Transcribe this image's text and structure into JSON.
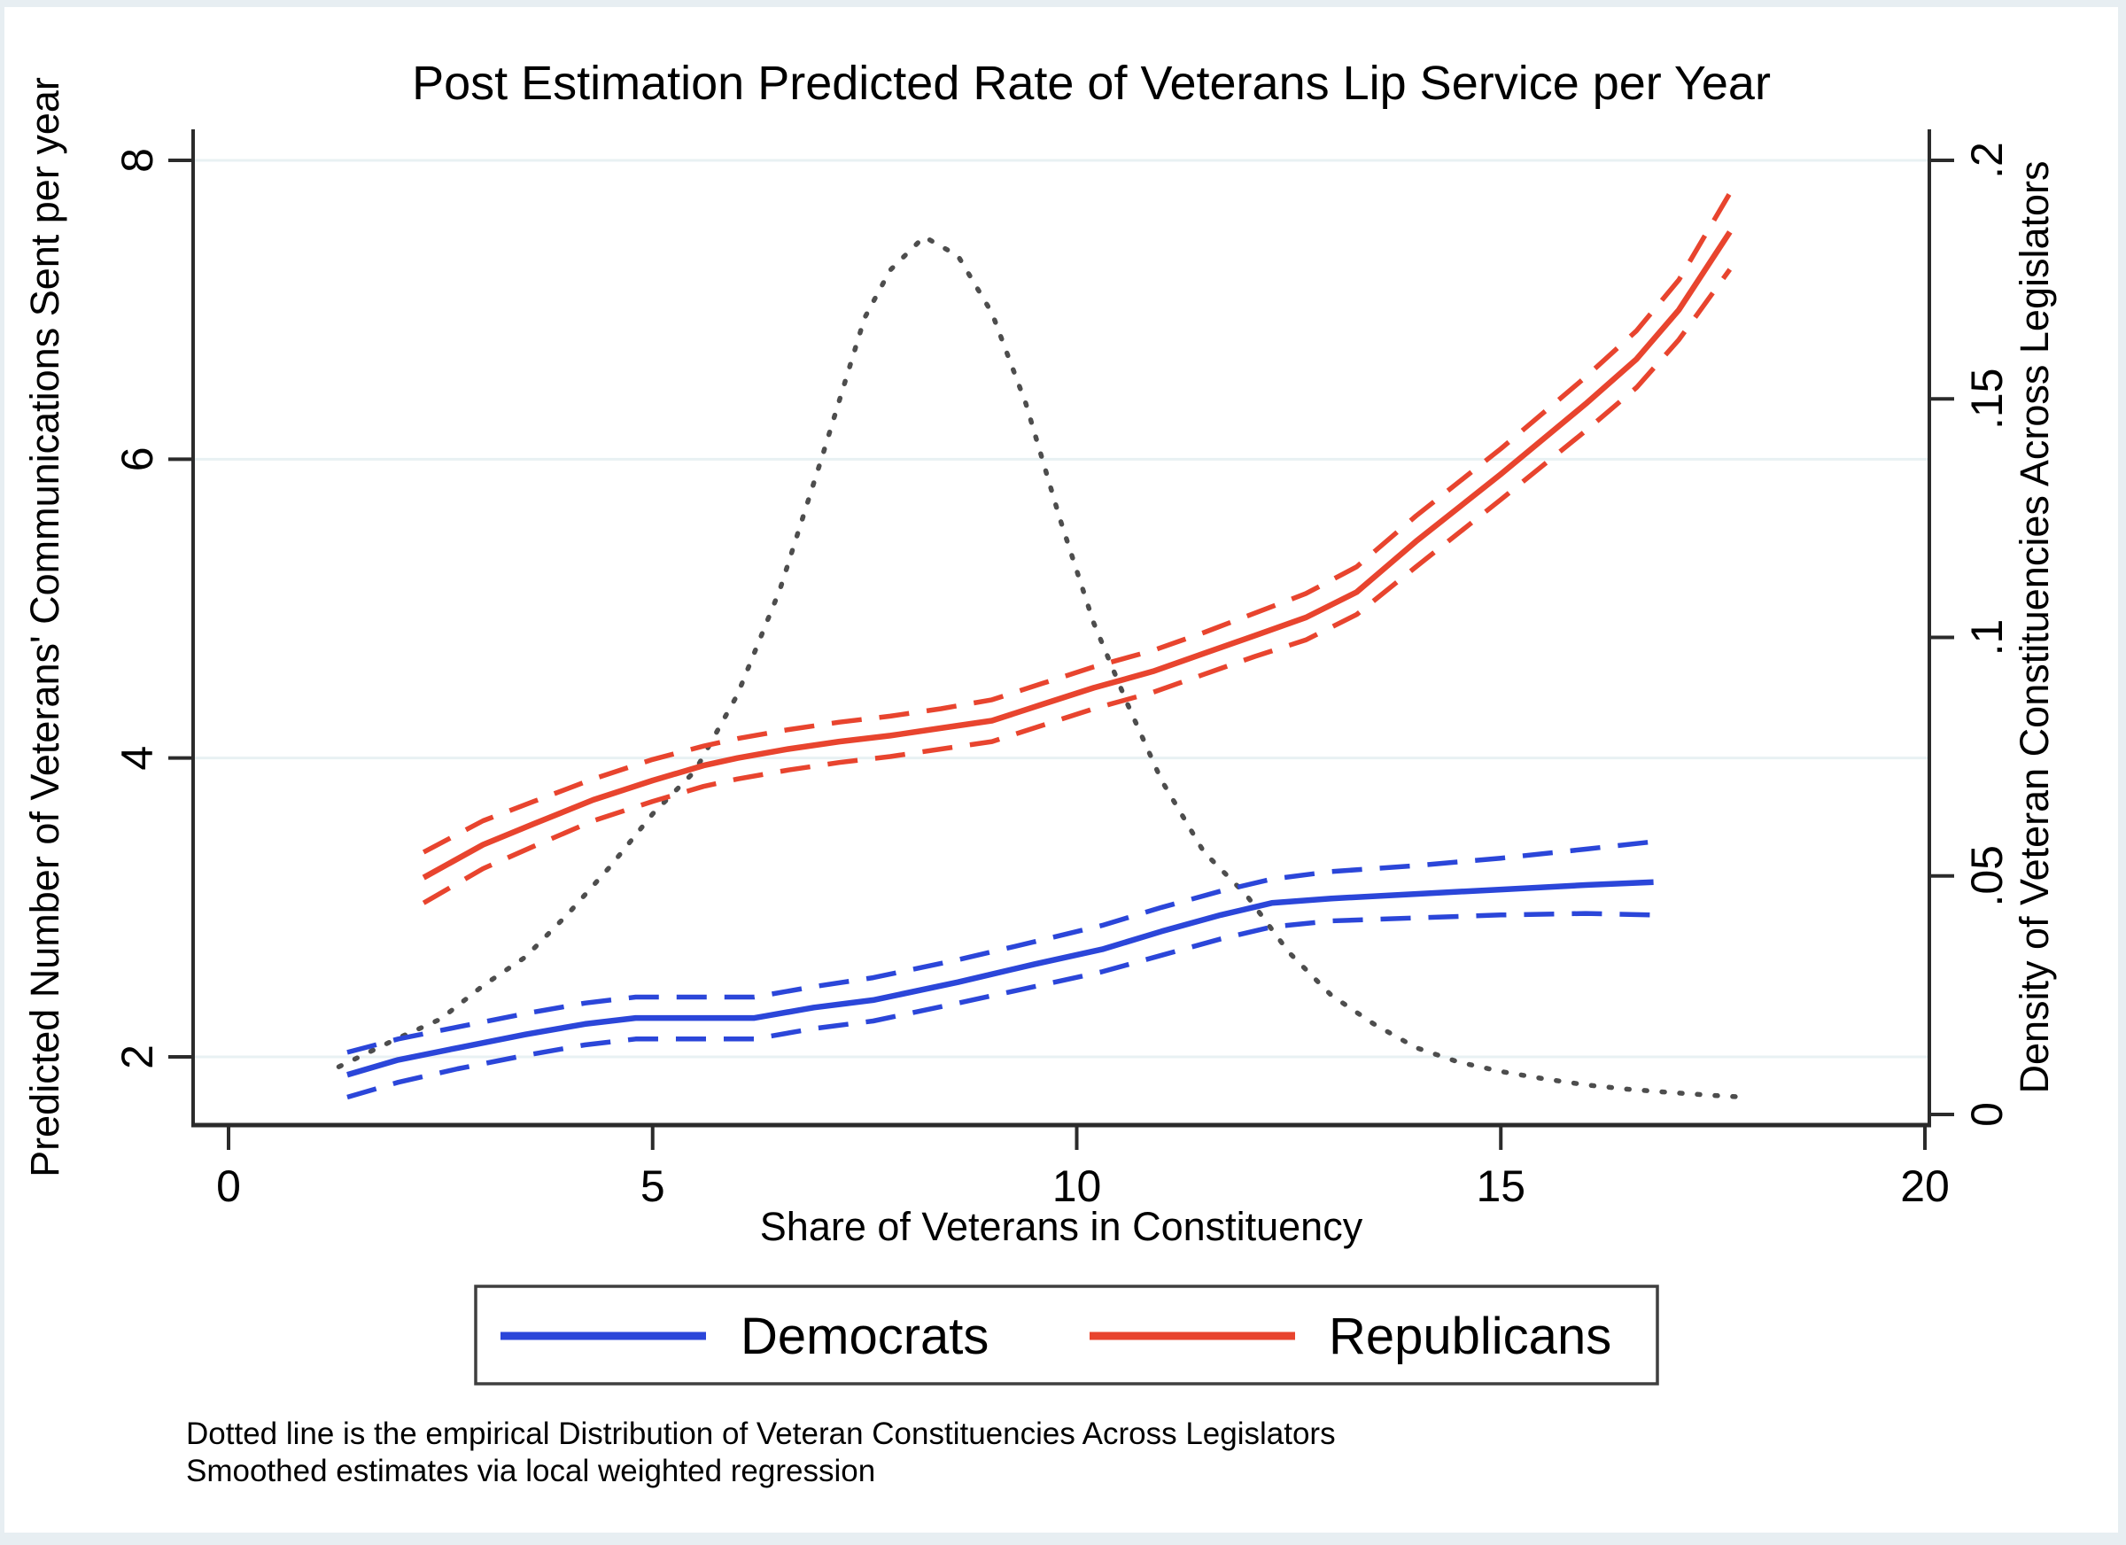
{
  "page": {
    "background": "#ffffff",
    "frame_color": "#e7eef2"
  },
  "chart_data": {
    "type": "line",
    "title": "Post Estimation Predicted Rate of Veterans Lip Service per Year",
    "x_axis": {
      "title": "Share of Veterans in Constituency",
      "tick_labels": [
        "0",
        "5",
        "10",
        "15",
        "20"
      ],
      "tick_values": [
        0,
        5,
        10,
        15,
        20
      ],
      "range": [
        0,
        20
      ]
    },
    "y_left": {
      "title": "Predicted Number of Veterans' Communications Sent per year",
      "tick_labels": [
        "2",
        "4",
        "6",
        "8"
      ],
      "tick_values": [
        2,
        4,
        6,
        8
      ],
      "visible_range": [
        1.55,
        8.45
      ],
      "grid": true
    },
    "y_right": {
      "title": "Density of Veteran Constituencies Across Legislators",
      "tick_labels": [
        "0",
        ".05",
        ".1",
        ".15",
        ".2"
      ],
      "tick_values": [
        0,
        0.05,
        0.1,
        0.15,
        0.2
      ],
      "visible_range": [
        0,
        0.21
      ],
      "grid": false
    },
    "legend": {
      "position": "bottom",
      "entries": [
        {
          "label": "Democrats",
          "color": "#2b46d9"
        },
        {
          "label": "Republicans",
          "color": "#e8442e"
        }
      ]
    },
    "notes": [
      "Dotted line is the empirical Distribution of Veteran Constituencies Across Legislators",
      "Smoothed estimates via local weighted regression"
    ],
    "colors": {
      "democrat": "#2b46d9",
      "republican": "#e8442e",
      "density_dotted": "#4d4d4d",
      "gridline": "#e8f1f3",
      "axis_line": "#2b2b2b"
    },
    "series": [
      {
        "name": "density-distribution",
        "axis": "right",
        "style": "dotted",
        "color": "#4d4d4d",
        "points": [
          [
            1.3,
            0.01
          ],
          [
            2.0,
            0.016
          ],
          [
            2.5,
            0.02
          ],
          [
            3.0,
            0.027
          ],
          [
            3.5,
            0.033
          ],
          [
            4.0,
            0.042
          ],
          [
            4.5,
            0.052
          ],
          [
            5.0,
            0.063
          ],
          [
            5.5,
            0.072
          ],
          [
            6.0,
            0.088
          ],
          [
            6.5,
            0.11
          ],
          [
            7.0,
            0.138
          ],
          [
            7.5,
            0.167
          ],
          [
            7.8,
            0.177
          ],
          [
            8.2,
            0.184
          ],
          [
            8.6,
            0.18
          ],
          [
            9.0,
            0.168
          ],
          [
            9.4,
            0.149
          ],
          [
            9.8,
            0.125
          ],
          [
            10.2,
            0.103
          ],
          [
            10.6,
            0.086
          ],
          [
            11.0,
            0.07
          ],
          [
            11.5,
            0.055
          ],
          [
            12.0,
            0.046
          ],
          [
            12.5,
            0.034
          ],
          [
            13.0,
            0.025
          ],
          [
            13.5,
            0.019
          ],
          [
            14.0,
            0.014
          ],
          [
            14.5,
            0.011
          ],
          [
            15.0,
            0.009
          ],
          [
            15.5,
            0.0075
          ],
          [
            16.0,
            0.0062
          ],
          [
            16.5,
            0.0053
          ],
          [
            17.0,
            0.0046
          ],
          [
            17.5,
            0.004
          ],
          [
            17.8,
            0.0037
          ]
        ]
      },
      {
        "name": "republicans-upper-ci",
        "axis": "left",
        "style": "dashed",
        "color": "#e8442e",
        "points": [
          [
            2.3,
            3.37
          ],
          [
            3.0,
            3.58
          ],
          [
            3.6,
            3.71
          ],
          [
            4.3,
            3.86
          ],
          [
            5.0,
            3.99
          ],
          [
            5.6,
            4.08
          ],
          [
            6.0,
            4.13
          ],
          [
            6.6,
            4.19
          ],
          [
            7.2,
            4.24
          ],
          [
            7.8,
            4.28
          ],
          [
            8.4,
            4.33
          ],
          [
            9.0,
            4.39
          ],
          [
            9.6,
            4.5
          ],
          [
            10.2,
            4.61
          ],
          [
            10.9,
            4.72
          ],
          [
            11.5,
            4.84
          ],
          [
            12.1,
            4.97
          ],
          [
            12.7,
            5.1
          ],
          [
            13.3,
            5.28
          ],
          [
            14.0,
            5.62
          ],
          [
            15.0,
            6.07
          ],
          [
            16.0,
            6.55
          ],
          [
            16.6,
            6.86
          ],
          [
            17.1,
            7.2
          ],
          [
            17.7,
            7.78
          ]
        ]
      },
      {
        "name": "republicans-center",
        "axis": "left",
        "style": "solid",
        "color": "#e8442e",
        "points": [
          [
            2.3,
            3.2
          ],
          [
            3.0,
            3.42
          ],
          [
            3.6,
            3.56
          ],
          [
            4.3,
            3.72
          ],
          [
            5.0,
            3.85
          ],
          [
            5.6,
            3.95
          ],
          [
            6.0,
            4.0
          ],
          [
            6.6,
            4.06
          ],
          [
            7.2,
            4.11
          ],
          [
            7.8,
            4.15
          ],
          [
            8.4,
            4.2
          ],
          [
            9.0,
            4.25
          ],
          [
            9.6,
            4.36
          ],
          [
            10.2,
            4.47
          ],
          [
            10.9,
            4.58
          ],
          [
            11.5,
            4.7
          ],
          [
            12.1,
            4.82
          ],
          [
            12.7,
            4.94
          ],
          [
            13.3,
            5.11
          ],
          [
            14.0,
            5.45
          ],
          [
            15.0,
            5.9
          ],
          [
            16.0,
            6.37
          ],
          [
            16.6,
            6.67
          ],
          [
            17.1,
            7.0
          ],
          [
            17.7,
            7.52
          ]
        ]
      },
      {
        "name": "republicans-lower-ci",
        "axis": "left",
        "style": "dashed",
        "color": "#e8442e",
        "points": [
          [
            2.3,
            3.03
          ],
          [
            3.0,
            3.26
          ],
          [
            3.6,
            3.41
          ],
          [
            4.3,
            3.58
          ],
          [
            5.0,
            3.71
          ],
          [
            5.6,
            3.81
          ],
          [
            6.0,
            3.86
          ],
          [
            6.6,
            3.92
          ],
          [
            7.2,
            3.97
          ],
          [
            7.8,
            4.01
          ],
          [
            8.4,
            4.06
          ],
          [
            9.0,
            4.11
          ],
          [
            9.6,
            4.22
          ],
          [
            10.2,
            4.33
          ],
          [
            10.9,
            4.44
          ],
          [
            11.5,
            4.56
          ],
          [
            12.1,
            4.68
          ],
          [
            12.7,
            4.79
          ],
          [
            13.3,
            4.96
          ],
          [
            14.0,
            5.28
          ],
          [
            15.0,
            5.73
          ],
          [
            16.0,
            6.19
          ],
          [
            16.6,
            6.48
          ],
          [
            17.1,
            6.8
          ],
          [
            17.7,
            7.27
          ]
        ]
      },
      {
        "name": "democrats-upper-ci",
        "axis": "left",
        "style": "dashed",
        "color": "#2b46d9",
        "points": [
          [
            1.4,
            2.03
          ],
          [
            2.0,
            2.12
          ],
          [
            2.7,
            2.2
          ],
          [
            3.5,
            2.29
          ],
          [
            4.2,
            2.36
          ],
          [
            4.8,
            2.4
          ],
          [
            5.5,
            2.4
          ],
          [
            6.2,
            2.4
          ],
          [
            6.9,
            2.47
          ],
          [
            7.6,
            2.53
          ],
          [
            8.6,
            2.65
          ],
          [
            9.5,
            2.77
          ],
          [
            10.3,
            2.88
          ],
          [
            11.0,
            3.0
          ],
          [
            11.7,
            3.11
          ],
          [
            12.3,
            3.19
          ],
          [
            13.0,
            3.24
          ],
          [
            14.0,
            3.28
          ],
          [
            15.0,
            3.33
          ],
          [
            16.0,
            3.39
          ],
          [
            16.8,
            3.44
          ]
        ]
      },
      {
        "name": "democrats-center",
        "axis": "left",
        "style": "solid",
        "color": "#2b46d9",
        "points": [
          [
            1.4,
            1.88
          ],
          [
            2.0,
            1.98
          ],
          [
            2.7,
            2.06
          ],
          [
            3.5,
            2.15
          ],
          [
            4.2,
            2.22
          ],
          [
            4.8,
            2.26
          ],
          [
            5.5,
            2.26
          ],
          [
            6.2,
            2.26
          ],
          [
            6.9,
            2.33
          ],
          [
            7.6,
            2.38
          ],
          [
            8.6,
            2.5
          ],
          [
            9.5,
            2.62
          ],
          [
            10.3,
            2.72
          ],
          [
            11.0,
            2.84
          ],
          [
            11.7,
            2.95
          ],
          [
            12.3,
            3.03
          ],
          [
            13.0,
            3.06
          ],
          [
            14.0,
            3.09
          ],
          [
            15.0,
            3.12
          ],
          [
            16.0,
            3.15
          ],
          [
            16.8,
            3.17
          ]
        ]
      },
      {
        "name": "democrats-lower-ci",
        "axis": "left",
        "style": "dashed",
        "color": "#2b46d9",
        "points": [
          [
            1.4,
            1.73
          ],
          [
            2.0,
            1.83
          ],
          [
            2.7,
            1.92
          ],
          [
            3.5,
            2.01
          ],
          [
            4.2,
            2.08
          ],
          [
            4.8,
            2.12
          ],
          [
            5.5,
            2.12
          ],
          [
            6.2,
            2.12
          ],
          [
            6.9,
            2.19
          ],
          [
            7.6,
            2.24
          ],
          [
            8.6,
            2.36
          ],
          [
            9.5,
            2.47
          ],
          [
            10.3,
            2.57
          ],
          [
            11.0,
            2.68
          ],
          [
            11.7,
            2.79
          ],
          [
            12.3,
            2.87
          ],
          [
            13.0,
            2.91
          ],
          [
            14.0,
            2.93
          ],
          [
            15.0,
            2.95
          ],
          [
            16.0,
            2.96
          ],
          [
            16.8,
            2.95
          ]
        ]
      }
    ]
  }
}
